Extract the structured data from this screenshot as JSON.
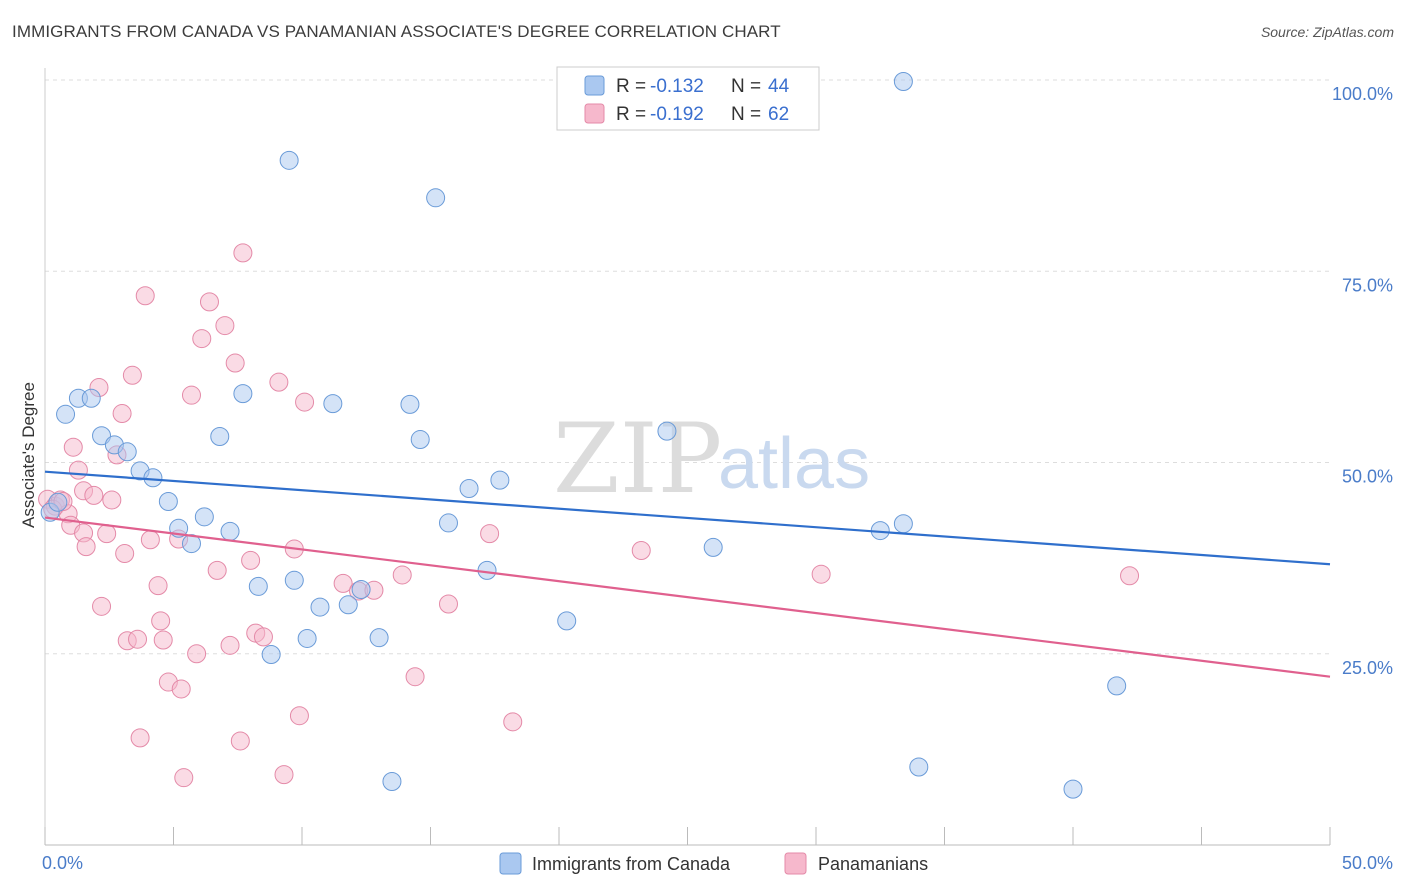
{
  "header": {
    "title": "IMMIGRANTS FROM CANADA VS PANAMANIAN ASSOCIATE'S DEGREE CORRELATION CHART",
    "source": "Source: ZipAtlas.com"
  },
  "watermark": {
    "zip": "ZIP",
    "atlas": "atlas"
  },
  "legend": {
    "rows": [
      {
        "r_label": "R =",
        "r_value": "-0.132",
        "n_label": "N =",
        "n_value": "44"
      },
      {
        "r_label": "R =",
        "r_value": "-0.192",
        "n_label": "N =",
        "n_value": "62"
      }
    ]
  },
  "bottom_legend": {
    "items": [
      "Immigrants from Canada",
      "Panamanians"
    ]
  },
  "colors": {
    "canada_fill": "#aac8f0",
    "canada_stroke": "#6a9bd8",
    "canada_line": "#2f6fcc",
    "panama_fill": "#f6b8cc",
    "panama_stroke": "#e48aa8",
    "panama_line": "#e0608e",
    "grid": "#dddddd",
    "tick_label": "#4a7cc9"
  },
  "chart_data": {
    "type": "scatter",
    "title": "IMMIGRANTS FROM CANADA VS PANAMANIAN ASSOCIATE'S DEGREE CORRELATION CHART",
    "xlabel": "",
    "ylabel": "Associate's Degree",
    "xlim": [
      0,
      50
    ],
    "ylim": [
      0,
      100
    ],
    "x_tick_labels": [
      "0.0%",
      "50.0%"
    ],
    "y_ticks": [
      25,
      50,
      75,
      100
    ],
    "y_tick_labels": [
      "25.0%",
      "50.0%",
      "75.0%",
      "100.0%"
    ],
    "grid": true,
    "legend_position": "top-center",
    "series": [
      {
        "name": "Immigrants from Canada",
        "r": -0.132,
        "n": 44,
        "trend": {
          "x": [
            0,
            50
          ],
          "y": [
            48.8,
            36.7
          ]
        },
        "points": [
          [
            0.2,
            43.5
          ],
          [
            0.5,
            44.8
          ],
          [
            0.8,
            56.3
          ],
          [
            1.3,
            58.4
          ],
          [
            1.8,
            58.4
          ],
          [
            2.2,
            53.5
          ],
          [
            2.7,
            52.3
          ],
          [
            3.2,
            51.4
          ],
          [
            3.7,
            48.9
          ],
          [
            4.2,
            48.0
          ],
          [
            4.8,
            44.9
          ],
          [
            5.2,
            41.4
          ],
          [
            5.7,
            39.4
          ],
          [
            6.2,
            42.9
          ],
          [
            6.8,
            53.4
          ],
          [
            7.2,
            41.0
          ],
          [
            7.7,
            59.0
          ],
          [
            8.3,
            33.8
          ],
          [
            8.8,
            24.9
          ],
          [
            9.5,
            89.5
          ],
          [
            9.7,
            34.6
          ],
          [
            10.2,
            27.0
          ],
          [
            10.7,
            31.1
          ],
          [
            11.2,
            57.7
          ],
          [
            11.8,
            31.4
          ],
          [
            12.3,
            33.4
          ],
          [
            13.0,
            27.1
          ],
          [
            13.5,
            8.3
          ],
          [
            14.2,
            57.6
          ],
          [
            14.6,
            53.0
          ],
          [
            15.2,
            84.6
          ],
          [
            15.7,
            42.1
          ],
          [
            16.5,
            46.6
          ],
          [
            17.2,
            35.9
          ],
          [
            17.7,
            47.7
          ],
          [
            20.3,
            29.3
          ],
          [
            24.2,
            54.1
          ],
          [
            26.0,
            38.9
          ],
          [
            32.5,
            41.1
          ],
          [
            33.4,
            42.0
          ],
          [
            33.4,
            99.8
          ],
          [
            34.0,
            10.2
          ],
          [
            40.0,
            7.3
          ],
          [
            41.7,
            20.8
          ]
        ]
      },
      {
        "name": "Panamanians",
        "r": -0.192,
        "n": 62,
        "trend": {
          "x": [
            0,
            50
          ],
          "y": [
            42.8,
            22.0
          ]
        },
        "points": [
          [
            0.1,
            45.2
          ],
          [
            0.4,
            44.3
          ],
          [
            0.6,
            45.1
          ],
          [
            0.9,
            43.3
          ],
          [
            1.0,
            41.8
          ],
          [
            1.1,
            52.0
          ],
          [
            1.3,
            49.0
          ],
          [
            1.5,
            46.3
          ],
          [
            1.5,
            40.8
          ],
          [
            1.6,
            39.0
          ],
          [
            1.9,
            45.7
          ],
          [
            2.1,
            59.8
          ],
          [
            2.2,
            31.2
          ],
          [
            2.4,
            40.7
          ],
          [
            2.6,
            45.1
          ],
          [
            2.8,
            51.0
          ],
          [
            3.0,
            56.4
          ],
          [
            3.1,
            38.1
          ],
          [
            3.2,
            26.7
          ],
          [
            3.4,
            61.4
          ],
          [
            3.6,
            26.9
          ],
          [
            3.7,
            14.0
          ],
          [
            3.9,
            71.8
          ],
          [
            4.1,
            39.9
          ],
          [
            4.4,
            33.9
          ],
          [
            4.5,
            29.3
          ],
          [
            4.6,
            26.8
          ],
          [
            4.8,
            21.3
          ],
          [
            5.2,
            40.0
          ],
          [
            5.3,
            20.4
          ],
          [
            5.4,
            8.8
          ],
          [
            5.7,
            58.8
          ],
          [
            5.9,
            25.0
          ],
          [
            6.1,
            66.2
          ],
          [
            6.4,
            71.0
          ],
          [
            6.7,
            35.9
          ],
          [
            7.0,
            67.9
          ],
          [
            7.2,
            26.1
          ],
          [
            7.4,
            63.0
          ],
          [
            7.6,
            13.6
          ],
          [
            7.7,
            77.4
          ],
          [
            8.0,
            37.2
          ],
          [
            8.2,
            27.7
          ],
          [
            8.5,
            27.2
          ],
          [
            9.1,
            60.5
          ],
          [
            9.3,
            9.2
          ],
          [
            9.7,
            38.7
          ],
          [
            9.9,
            16.9
          ],
          [
            10.1,
            57.9
          ],
          [
            11.6,
            34.2
          ],
          [
            12.2,
            33.2
          ],
          [
            12.8,
            33.3
          ],
          [
            13.9,
            35.3
          ],
          [
            14.4,
            22.0
          ],
          [
            15.7,
            31.5
          ],
          [
            17.3,
            40.7
          ],
          [
            18.2,
            16.1
          ],
          [
            23.2,
            38.5
          ],
          [
            30.2,
            35.4
          ],
          [
            42.2,
            35.2
          ],
          [
            0.3,
            43.9
          ],
          [
            0.7,
            44.9
          ]
        ]
      }
    ]
  }
}
